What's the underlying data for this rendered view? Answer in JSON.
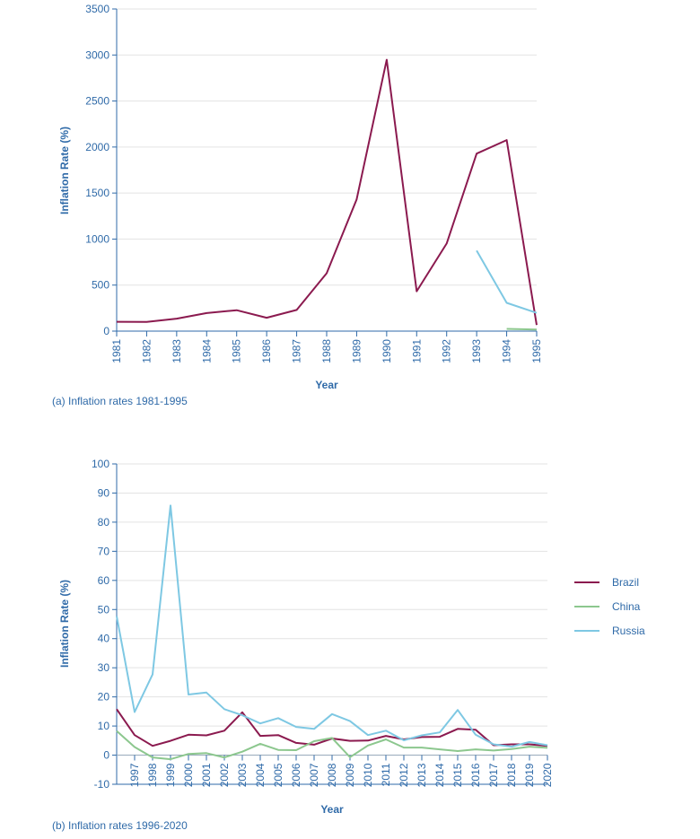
{
  "chart_data": [
    {
      "type": "line",
      "caption": "(a) Inflation rates 1981-1995",
      "xlabel": "Year",
      "ylabel": "Inflation Rate (%)",
      "ylim": [
        0,
        3500
      ],
      "yticks": [
        0,
        500,
        1000,
        1500,
        2000,
        2500,
        3000,
        3500
      ],
      "x": [
        1981,
        1982,
        1983,
        1984,
        1985,
        1986,
        1987,
        1988,
        1989,
        1990,
        1991,
        1992,
        1993,
        1994,
        1995
      ],
      "grid": true,
      "series": [
        {
          "name": "Brazil",
          "color": "#8b1a4f",
          "x": [
            1981,
            1982,
            1983,
            1984,
            1985,
            1986,
            1987,
            1988,
            1989,
            1990,
            1991,
            1992,
            1993,
            1994,
            1995
          ],
          "values": [
            101,
            100,
            136,
            196,
            227,
            145,
            230,
            629,
            1431,
            2948,
            433,
            952,
            1928,
            2076,
            66
          ]
        },
        {
          "name": "China",
          "color": "#8cc78e",
          "x": [
            1994,
            1995
          ],
          "values": [
            24,
            17
          ]
        },
        {
          "name": "Russia",
          "color": "#7ec8e3",
          "x": [
            1993,
            1994,
            1995
          ],
          "values": [
            875,
            307,
            198
          ]
        }
      ]
    },
    {
      "type": "line",
      "caption": "(b) Inflation rates 1996-2020",
      "xlabel": "Year",
      "ylabel": "Inflation Rate (%)",
      "ylim": [
        -10,
        100
      ],
      "yticks": [
        -10,
        0,
        10,
        20,
        30,
        40,
        50,
        60,
        70,
        80,
        90,
        100
      ],
      "x": [
        1996,
        1997,
        1998,
        1999,
        2000,
        2001,
        2002,
        2003,
        2004,
        2005,
        2006,
        2007,
        2008,
        2009,
        2010,
        2011,
        2012,
        2013,
        2014,
        2015,
        2016,
        2017,
        2018,
        2019,
        2020
      ],
      "xtick_labels": [
        1997,
        1998,
        1999,
        2000,
        2001,
        2002,
        2003,
        2004,
        2005,
        2006,
        2007,
        2008,
        2009,
        2010,
        2011,
        2012,
        2013,
        2014,
        2015,
        2016,
        2017,
        2018,
        2019,
        2020
      ],
      "grid": true,
      "legend": "right",
      "series": [
        {
          "name": "Brazil",
          "color": "#8b1a4f",
          "values": [
            15.8,
            6.9,
            3.2,
            4.9,
            7.0,
            6.8,
            8.4,
            14.7,
            6.6,
            6.9,
            4.2,
            3.6,
            5.7,
            4.9,
            5.0,
            6.6,
            5.4,
            6.2,
            6.3,
            9.0,
            8.7,
            3.4,
            3.7,
            3.7,
            3.2
          ]
        },
        {
          "name": "China",
          "color": "#8cc78e",
          "values": [
            8.3,
            2.8,
            -0.8,
            -1.4,
            0.4,
            0.7,
            -0.8,
            1.2,
            3.9,
            1.8,
            1.7,
            4.8,
            5.9,
            -0.7,
            3.3,
            5.4,
            2.6,
            2.6,
            2.0,
            1.4,
            2.0,
            1.6,
            2.1,
            2.9,
            2.5
          ]
        },
        {
          "name": "Russia",
          "color": "#7ec8e3",
          "values": [
            47.7,
            14.8,
            27.7,
            85.7,
            20.8,
            21.5,
            15.8,
            13.7,
            10.9,
            12.7,
            9.7,
            9.0,
            14.1,
            11.7,
            6.9,
            8.4,
            5.1,
            6.8,
            7.8,
            15.5,
            7.0,
            3.7,
            2.9,
            4.5,
            3.4
          ]
        }
      ]
    }
  ]
}
